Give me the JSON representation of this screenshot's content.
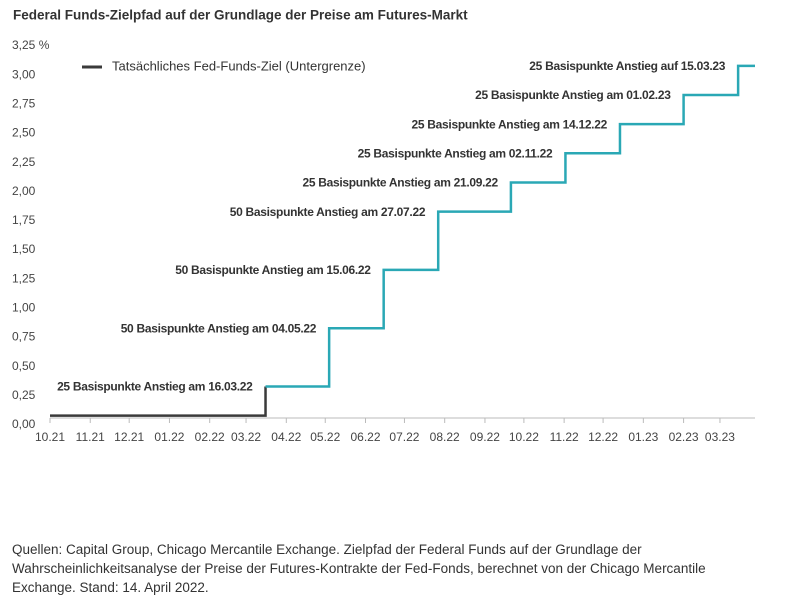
{
  "chart_data": {
    "type": "step",
    "title": "Federal Funds-Zielpfad auf der Grundlage der Preise am Futures-Markt",
    "source": "Quellen: Capital Group, Chicago Mercantile Exchange. Zielpfad der Federal Funds auf der Grundlage der Wahrscheinlichkeitsanalyse der Preise der Futures-Kontrakte der Fed-Fonds, berechnet von der Chicago Mercantile Exchange. Stand: 14. April 2022.",
    "series": [
      {
        "name": "Tatsächliches Fed-Funds-Ziel (Untergrenze)",
        "color": "#3a3a3a",
        "x": [
          "2021-10-01",
          "2022-03-16"
        ],
        "values": [
          0.08,
          0.33
        ]
      },
      {
        "color": "#2aa8b5",
        "x": [
          "2022-03-16",
          "2022-05-04",
          "2022-06-15",
          "2022-07-27",
          "2022-09-21",
          "2022-11-02",
          "2022-12-14",
          "2023-02-01",
          "2023-03-15",
          "2023-03-28"
        ],
        "values": [
          0.33,
          0.83,
          1.33,
          1.83,
          2.08,
          2.33,
          2.58,
          2.83,
          3.08,
          3.08
        ]
      }
    ],
    "annotations": [
      "25 Basispunkte Anstieg am 16.03.22",
      "50 Basispunkte Anstieg am 04.05.22",
      "50 Basispunkte Anstieg am 15.06.22",
      "50 Basispunkte Anstieg am 27.07.22",
      "25 Basispunkte Anstieg am 21.09.22",
      "25 Basispunkte Anstieg am 02.11.22",
      "25 Basispunkte Anstieg am 14.12.22",
      "25 Basispunkte Anstieg am 01.02.23",
      "25 Basispunkte Anstieg auf 15.03.23"
    ],
    "xlim": [
      "2021-10-01",
      "2023-03-28"
    ],
    "xticks": [
      {
        "value": "2021-10-01",
        "label": "10.21"
      },
      {
        "value": "2021-11-01",
        "label": "11.21"
      },
      {
        "value": "2021-12-01",
        "label": "12.21"
      },
      {
        "value": "2022-01-01",
        "label": "01.22"
      },
      {
        "value": "2022-02-01",
        "label": "02.22"
      },
      {
        "value": "2022-03-01",
        "label": "03.22"
      },
      {
        "value": "2022-04-01",
        "label": "04.22"
      },
      {
        "value": "2022-05-01",
        "label": "05.22"
      },
      {
        "value": "2022-06-01",
        "label": "06.22"
      },
      {
        "value": "2022-07-01",
        "label": "07.22"
      },
      {
        "value": "2022-08-01",
        "label": "08.22"
      },
      {
        "value": "2022-09-01",
        "label": "09.22"
      },
      {
        "value": "2022-10-01",
        "label": "10.22"
      },
      {
        "value": "2022-11-01",
        "label": "11.22"
      },
      {
        "value": "2022-12-01",
        "label": "12.22"
      },
      {
        "value": "2023-01-01",
        "label": "01.23"
      },
      {
        "value": "2023-02-01",
        "label": "02.23"
      },
      {
        "value": "2023-03-01",
        "label": "03.23"
      }
    ],
    "ylim": [
      0,
      3.25
    ],
    "yticks": [
      {
        "value": 0,
        "label": "0,00"
      },
      {
        "value": 0.25,
        "label": "0,25"
      },
      {
        "value": 0.5,
        "label": "0,50"
      },
      {
        "value": 0.75,
        "label": "0,75"
      },
      {
        "value": 1,
        "label": "1,00"
      },
      {
        "value": 1.25,
        "label": "1,25"
      },
      {
        "value": 1.5,
        "label": "1,50"
      },
      {
        "value": 1.75,
        "label": "1,75"
      },
      {
        "value": 2,
        "label": "2,00"
      },
      {
        "value": 2.25,
        "label": "2,25"
      },
      {
        "value": 2.5,
        "label": "2,50"
      },
      {
        "value": 2.75,
        "label": "2,75"
      },
      {
        "value": 3,
        "label": "3,00"
      },
      {
        "value": 3.25,
        "label": "3,25 %"
      }
    ],
    "grid": false
  }
}
